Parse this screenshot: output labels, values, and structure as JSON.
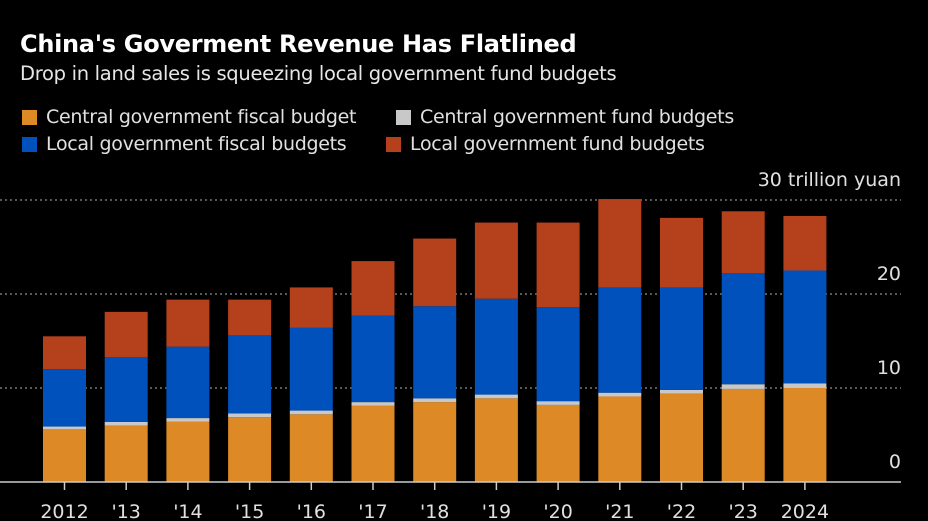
{
  "chart_data": {
    "type": "bar",
    "stacked": true,
    "title": "China's Goverment Revenue Has Flatlined",
    "subtitle": "Drop in land sales is squeezing local government fund budgets",
    "unit_label": "30 trillion yuan",
    "categories": [
      "2012",
      "'13",
      "'14",
      "'15",
      "'16",
      "'17",
      "'18",
      "'19",
      "'20",
      "'21",
      "'22",
      "'23",
      "2024"
    ],
    "yticks": [
      "0",
      "10",
      "20"
    ],
    "ylim": [
      0,
      30
    ],
    "grid": true,
    "legend_position": "top-left",
    "series": [
      {
        "name": "Central government fiscal budget",
        "color": "#dd8a26",
        "values": [
          5.6,
          6.0,
          6.4,
          6.9,
          7.2,
          8.1,
          8.5,
          8.9,
          8.2,
          9.1,
          9.4,
          9.9,
          10.0
        ]
      },
      {
        "name": "Central government fund budgets",
        "color": "#c8c8c8",
        "values": [
          0.3,
          0.4,
          0.4,
          0.4,
          0.4,
          0.4,
          0.4,
          0.4,
          0.4,
          0.4,
          0.4,
          0.5,
          0.5
        ]
      },
      {
        "name": "Local government fiscal budgets",
        "color": "#0051bb",
        "values": [
          6.1,
          6.9,
          7.6,
          8.3,
          8.8,
          9.2,
          9.8,
          10.2,
          10.0,
          11.2,
          10.9,
          11.8,
          12.0
        ]
      },
      {
        "name": "Local government fund budgets",
        "color": "#b5401c",
        "values": [
          3.5,
          4.8,
          5.0,
          3.8,
          4.3,
          5.8,
          7.2,
          8.1,
          9.0,
          9.4,
          7.4,
          6.6,
          5.8
        ]
      }
    ]
  }
}
